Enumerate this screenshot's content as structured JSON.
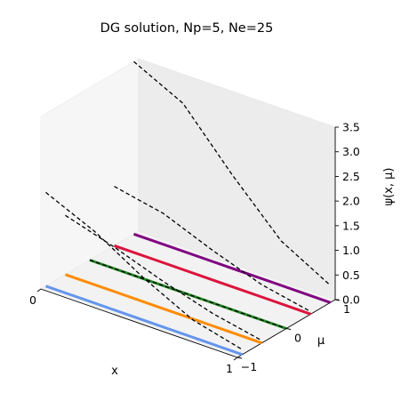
{
  "chart_data": {
    "type": "line",
    "projection": "3d",
    "title": "DG solution, Np=5, Ne=25",
    "xlabel": "x",
    "ylabel": "μ",
    "zlabel": "ψ(x, μ)",
    "xlim": [
      0,
      1
    ],
    "ylim": [
      -1,
      1
    ],
    "zlim": [
      0,
      3.5
    ],
    "xticks": [
      "0",
      "1"
    ],
    "yticks": [
      "−1",
      "0",
      "1"
    ],
    "zticks": [
      "0.0",
      "0.5",
      "1.0",
      "1.5",
      "2.0",
      "2.5",
      "3.0",
      "3.5"
    ],
    "grid": false,
    "colors": [
      "#6495ED",
      "#FF8C00",
      "#228B22",
      "#DC143C",
      "#800080"
    ],
    "series": [
      {
        "mu": -0.9,
        "kind": "solid",
        "color": "#6495ED",
        "x": [
          0,
          0.25,
          0.5,
          0.75,
          1
        ],
        "z": [
          0,
          0,
          0,
          0,
          0
        ]
      },
      {
        "mu": -0.5,
        "kind": "solid",
        "color": "#FF8C00",
        "x": [
          0,
          0.25,
          0.5,
          0.75,
          1
        ],
        "z": [
          0,
          0,
          0,
          0,
          0
        ]
      },
      {
        "mu": 0.0,
        "kind": "solid",
        "color": "#228B22",
        "x": [
          0,
          0.25,
          0.5,
          0.75,
          1
        ],
        "z": [
          0,
          0,
          0,
          0,
          0
        ]
      },
      {
        "mu": 0.5,
        "kind": "solid",
        "color": "#DC143C",
        "x": [
          0,
          0.25,
          0.5,
          0.75,
          1
        ],
        "z": [
          0,
          0,
          0,
          0,
          0
        ]
      },
      {
        "mu": 0.9,
        "kind": "solid",
        "color": "#800080",
        "x": [
          0,
          0.25,
          0.5,
          0.75,
          1
        ],
        "z": [
          0,
          0,
          0,
          0,
          0
        ]
      },
      {
        "mu": 0.0,
        "kind": "dashed",
        "color": "#000000",
        "x": [
          0,
          0.25,
          0.5,
          0.75,
          1
        ],
        "z": [
          0,
          0,
          0,
          0,
          0
        ]
      },
      {
        "mu": -0.9,
        "kind": "dashed",
        "color": "#000000",
        "x": [
          0,
          0.25,
          0.5,
          0.75,
          1
        ],
        "z": [
          1.9,
          1.45,
          0.85,
          0.35,
          0.1
        ]
      },
      {
        "mu": -0.5,
        "kind": "dashed",
        "color": "#000000",
        "x": [
          0,
          0.25,
          0.5,
          0.75,
          1
        ],
        "z": [
          1.2,
          0.9,
          0.55,
          0.25,
          0.05
        ]
      },
      {
        "mu": 0.5,
        "kind": "dashed",
        "color": "#000000",
        "x": [
          0,
          0.25,
          0.5,
          0.75,
          1
        ],
        "z": [
          1.2,
          1.0,
          0.6,
          0.25,
          0.05
        ]
      },
      {
        "mu": 0.9,
        "kind": "dashed",
        "color": "#000000",
        "x": [
          0,
          0.25,
          0.5,
          0.75,
          1
        ],
        "z": [
          3.5,
          3.0,
          1.9,
          0.9,
          0.35
        ]
      }
    ]
  }
}
